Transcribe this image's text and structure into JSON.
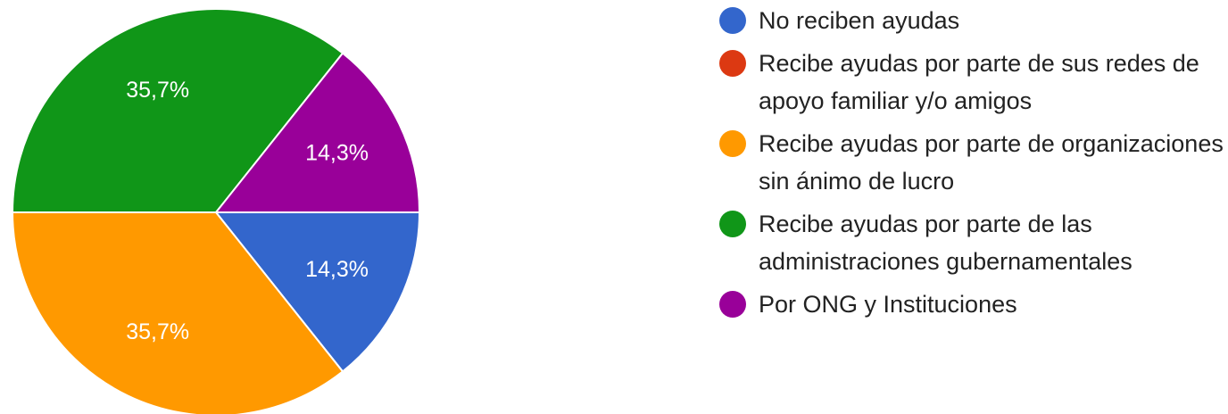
{
  "chart_data": {
    "type": "pie",
    "categories": [
      "No reciben ayudas",
      "Recibe ayudas por parte de sus redes de apoyo familiar y/o amigos",
      "Recibe ayudas por parte de organizaciones sin ánimo de lucro",
      "Recibe ayudas por parte de las administraciones gubernamentales",
      "Por ONG y Instituciones"
    ],
    "values": [
      14.3,
      0,
      35.7,
      35.7,
      14.3
    ],
    "value_labels": [
      "14,3%",
      null,
      "35,7%",
      "35,7%",
      "14,3%"
    ],
    "colors": [
      "#3366cc",
      "#dc3912",
      "#ff9900",
      "#109618",
      "#990099"
    ]
  }
}
